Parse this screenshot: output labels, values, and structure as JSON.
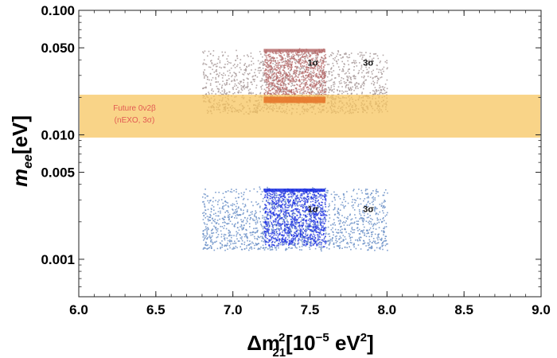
{
  "chart_data": {
    "type": "scatter",
    "title": "",
    "xlabel": {
      "base": "Δm",
      "sub": "21",
      "sup": "2",
      "unit_open": "[10",
      "unit_exp": "−5",
      "unit_mid": " eV",
      "unit_sup": "2",
      "unit_close": "]"
    },
    "ylabel": {
      "base": "m",
      "sub": "ee",
      "unit": "[eV]"
    },
    "x_scale": "linear",
    "y_scale": "log",
    "xlim": [
      6.0,
      9.0
    ],
    "ylim": [
      0.0005,
      0.1
    ],
    "x_ticks": [
      6.0,
      6.5,
      7.0,
      7.5,
      8.0,
      8.5,
      9.0
    ],
    "x_tick_labels": [
      "6.0",
      "6.5",
      "7.0",
      "7.5",
      "8.0",
      "8.5",
      "9.0"
    ],
    "y_ticks": [
      0.001,
      0.005,
      0.01,
      0.05,
      0.1
    ],
    "y_tick_labels": [
      "0.001",
      "0.005",
      "0.010",
      "0.050",
      "0.100"
    ],
    "grid": false,
    "series": [
      {
        "name": "upper-3sigma",
        "color": "#a89a9a",
        "x_range": [
          6.8,
          8.0
        ],
        "y_range": [
          0.015,
          0.048
        ]
      },
      {
        "name": "upper-1sigma",
        "color": "#b56a6a",
        "x_range": [
          7.2,
          7.6
        ],
        "y_range": [
          0.018,
          0.049
        ]
      },
      {
        "name": "lower-3sigma",
        "color": "#6a8fc7",
        "x_range": [
          6.8,
          8.0
        ],
        "y_range": [
          0.0012,
          0.0038
        ]
      },
      {
        "name": "lower-1sigma",
        "color": "#1a2ee0",
        "x_range": [
          7.2,
          7.6
        ],
        "y_range": [
          0.0013,
          0.0037
        ]
      }
    ],
    "bands": [
      {
        "name": "future-0v2b-nexo",
        "color": "#f7c35a",
        "y_range": [
          0.0095,
          0.021
        ],
        "label_line1": "Future 0ν2β",
        "label_line2": "(nEXO, 3σ)"
      }
    ],
    "annotations": [
      {
        "text": "1σ",
        "x": 7.52,
        "y": 0.036
      },
      {
        "text": "3σ",
        "x": 7.88,
        "y": 0.036
      },
      {
        "text": "1σ",
        "x": 7.52,
        "y": 0.0024
      },
      {
        "text": "3σ",
        "x": 7.88,
        "y": 0.0024
      }
    ]
  }
}
